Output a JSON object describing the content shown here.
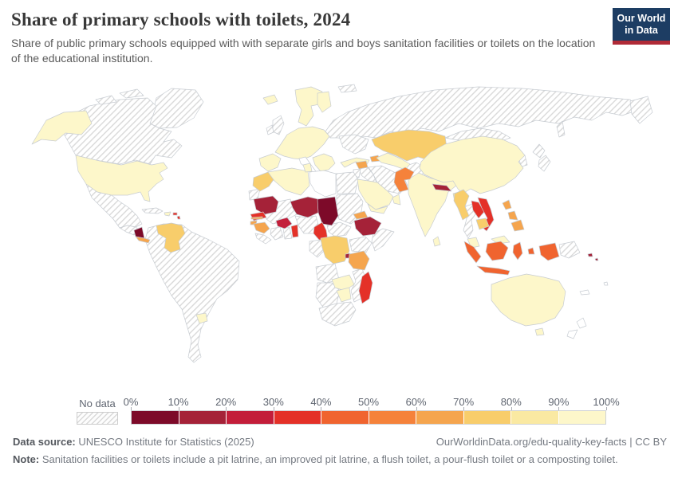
{
  "header": {
    "title": "Share of primary schools with toilets, 2024",
    "subtitle": "Share of public primary schools equipped with with separate girls and boys sanitation facilities or toilets on the location of the educational institution.",
    "logo": {
      "line1": "Our World",
      "line2": "in Data",
      "bg_color": "#1d3d63",
      "accent_color": "#b02a37"
    }
  },
  "legend": {
    "no_data_label": "No data",
    "tick_labels": [
      "0%",
      "10%",
      "20%",
      "30%",
      "40%",
      "50%",
      "60%",
      "70%",
      "80%",
      "90%",
      "100%"
    ],
    "bins": [
      "0-10",
      "10-20",
      "20-30",
      "30-40",
      "40-50",
      "50-60",
      "60-70",
      "70-80",
      "80-90",
      "90-100"
    ],
    "colors": [
      "#7d0a29",
      "#a52238",
      "#c31e3a",
      "#e43128",
      "#f0642f",
      "#f5823b",
      "#f5a54e",
      "#f8cd6b",
      "#fae9a2",
      "#fdf7ca"
    ]
  },
  "map": {
    "hatch_line_color": "#d9d9d9",
    "regions": {
      "greenland": "nodata",
      "canada": "nodata",
      "alaska": "90-100",
      "usa": "90-100",
      "mexico": "nodata",
      "guatemala_honduras": "nodata",
      "nicaragua": "0-10",
      "costa_rica_panama": "60-70",
      "cuba": "nodata",
      "hispaniola": "90-100",
      "puerto_rico": "30-40",
      "lesser_antilles": "30-40",
      "venezuela": "70-80",
      "south_america": "nodata",
      "uruguay": "90-100",
      "iceland": "90-100",
      "scandinavia": "90-100",
      "finland": "90-100",
      "uk": "nodata",
      "ireland": "nodata",
      "iberia": "90-100",
      "europe_central": "90-100",
      "balkans": "90-100",
      "italy": "none",
      "svalbard": "nodata",
      "russia": "nodata",
      "ukraine_belarus": "nodata",
      "turkey": "90-100",
      "azerbaijan": "60-70",
      "kazakhstan": "70-80",
      "central_asia": "90-100",
      "iran": "nodata",
      "iraq": "nodata",
      "afghanistan": "nodata",
      "syria": "60-70",
      "jordan_israel": "nodata",
      "saudi_arabia": "90-100",
      "yemen": "90-100",
      "oman": "90-100",
      "morocco": "70-80",
      "western_sahara": "nodata",
      "algeria": "90-100",
      "tunisia": "90-100",
      "libya": "none",
      "egypt": "nodata",
      "mauritania": "10-20",
      "mali": "nodata",
      "senegal": "30-40",
      "gambia": "60-70",
      "guinea_bissau": "60-70",
      "guinea": "60-70",
      "sierra_leone_liberia": "nodata",
      "burkina_faso": "20-30",
      "ivory_coast": "nodata",
      "ghana": "nodata",
      "togo_benin": "30-40",
      "niger": "10-20",
      "nigeria": "nodata",
      "chad": "0-10",
      "sudan": "nodata",
      "cameroon": "30-40",
      "central_african_republic": "nodata",
      "ethiopia": "10-20",
      "eritrea": "60-70",
      "somalia": "nodata",
      "kenya_uganda": "nodata",
      "gabon_congo": "nodata",
      "dr_congo": "70-80",
      "burundi": "10-20",
      "tanzania": "60-70",
      "angola": "nodata",
      "zambia": "90-100",
      "mozambique": "nodata",
      "zimbabwe": "90-100",
      "namibia_botswana": "nodata",
      "south_africa": "nodata",
      "madagascar": "30-40",
      "pakistan": "50-60",
      "india": "90-100",
      "nepal": "10-20",
      "bangladesh": "80-90",
      "sri_lanka": "90-100",
      "china": "90-100",
      "mongolia": "nodata",
      "korea": "nodata",
      "japan": "nodata",
      "myanmar": "70-80",
      "thailand": "nodata",
      "laos": "30-40",
      "vietnam": "30-40",
      "cambodia": "70-80",
      "malaysia": "90-100",
      "philippines": "60-70",
      "indonesia": "40-50",
      "papua_new_guinea": "nodata",
      "solomon_islands": "10-20",
      "australia": "90-100",
      "new_zealand": "none",
      "new_caledonia": "none",
      "fiji": "none"
    }
  },
  "footer": {
    "datasource_label": "Data source:",
    "datasource_value": " UNESCO Institute for Statistics (2025)",
    "link": "OurWorldinData.org/edu-quality-key-facts | CC BY",
    "note_label": "Note:",
    "note_value": " Sanitation facilities or toilets include a pit latrine, an improved pit latrine, a flush toilet, a pour-flush toilet or a composting toilet."
  },
  "chart_data": {
    "type": "choropleth",
    "title": "Share of primary schools with toilets, 2024",
    "unit": "% of public primary schools",
    "legend_bins": [
      "0-10",
      "10-20",
      "20-30",
      "30-40",
      "40-50",
      "50-60",
      "60-70",
      "70-80",
      "80-90",
      "90-100"
    ],
    "legend_colors": [
      "#7d0a29",
      "#a52238",
      "#c31e3a",
      "#e43128",
      "#f0642f",
      "#f5823b",
      "#f5a54e",
      "#f8cd6b",
      "#fae9a2",
      "#fdf7ca"
    ],
    "no_data_style": "gray diagonal hatching",
    "countries": {
      "United States": "90-100",
      "Canada": "No data",
      "Greenland": "No data",
      "Mexico": "No data",
      "Nicaragua": "0-10",
      "Costa Rica": "60-70",
      "Dominican Republic": "90-100",
      "Puerto Rico": "30-40",
      "Venezuela": "70-80",
      "Uruguay": "90-100",
      "Brazil": "No data",
      "Argentina": "No data",
      "Colombia": "No data",
      "Peru": "No data",
      "Chile": "No data",
      "Bolivia": "No data",
      "Iceland": "90-100",
      "Norway": "90-100",
      "Sweden": "90-100",
      "Finland": "90-100",
      "France": "90-100",
      "Spain": "90-100",
      "Portugal": "90-100",
      "Germany": "90-100",
      "Poland": "90-100",
      "United Kingdom": "No data",
      "Ireland": "No data",
      "Italy": "No data",
      "Russia": "No data",
      "Ukraine": "No data",
      "Turkey": "90-100",
      "Azerbaijan": "60-70",
      "Kazakhstan": "70-80",
      "Uzbekistan": "90-100",
      "Turkmenistan": "90-100",
      "Iran": "No data",
      "Iraq": "No data",
      "Afghanistan": "No data",
      "Syria": "60-70",
      "Saudi Arabia": "90-100",
      "Yemen": "90-100",
      "Oman": "90-100",
      "Morocco": "70-80",
      "Algeria": "90-100",
      "Tunisia": "90-100",
      "Libya": "No data",
      "Egypt": "No data",
      "Mauritania": "10-20",
      "Mali": "No data",
      "Senegal": "30-40",
      "Gambia": "60-70",
      "Guinea-Bissau": "60-70",
      "Guinea": "60-70",
      "Sierra Leone": "No data",
      "Liberia": "No data",
      "Burkina Faso": "20-30",
      "Cote d'Ivoire": "No data",
      "Ghana": "No data",
      "Togo": "30-40",
      "Benin": "30-40",
      "Niger": "10-20",
      "Nigeria": "No data",
      "Chad": "0-10",
      "Sudan": "No data",
      "Cameroon": "30-40",
      "Central African Republic": "No data",
      "Ethiopia": "10-20",
      "Eritrea": "60-70",
      "Somalia": "No data",
      "Kenya": "No data",
      "Democratic Republic of Congo": "70-80",
      "Burundi": "10-20",
      "Tanzania": "60-70",
      "Angola": "No data",
      "Zambia": "90-100",
      "Mozambique": "No data",
      "Zimbabwe": "90-100",
      "Namibia": "No data",
      "Botswana": "No data",
      "South Africa": "No data",
      "Madagascar": "30-40",
      "Pakistan": "50-60",
      "India": "90-100",
      "Nepal": "10-20",
      "Bangladesh": "80-90",
      "Sri Lanka": "90-100",
      "China": "90-100",
      "Mongolia": "No data",
      "Japan": "No data",
      "South Korea": "No data",
      "Myanmar": "70-80",
      "Thailand": "No data",
      "Laos": "30-40",
      "Vietnam": "30-40",
      "Cambodia": "70-80",
      "Malaysia": "90-100",
      "Philippines": "60-70",
      "Indonesia": "40-50",
      "Papua New Guinea": "No data",
      "Solomon Islands": "10-20",
      "Australia": "90-100",
      "New Zealand": "No data"
    }
  }
}
